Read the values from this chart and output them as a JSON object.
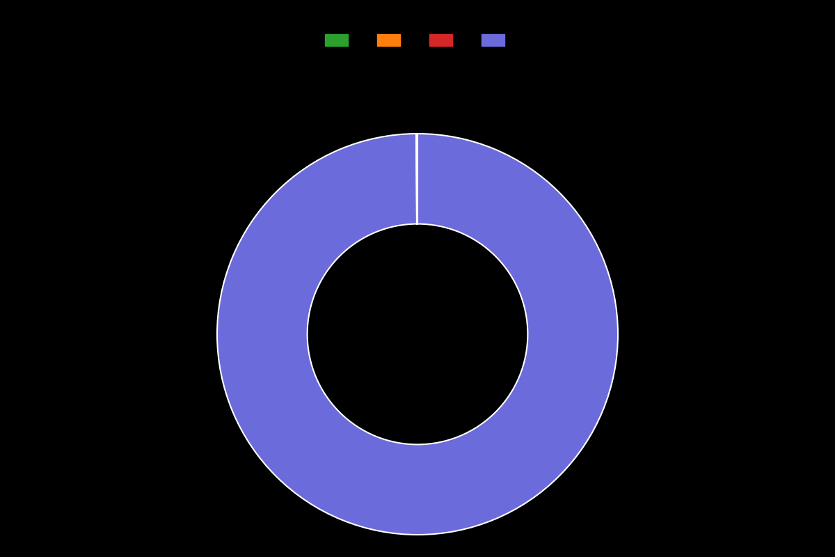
{
  "values": [
    99.9,
    0.033,
    0.033,
    0.034
  ],
  "colors": [
    "#6b6bdb",
    "#2ca02c",
    "#ff7f0e",
    "#d62728"
  ],
  "legend_colors": [
    "#2ca02c",
    "#ff7f0e",
    "#d62728",
    "#6b6bdb"
  ],
  "legend_labels": [
    "",
    "",
    "",
    ""
  ],
  "background_color": "#000000",
  "wedge_edge_color": "#ffffff",
  "donut_width": 0.45,
  "figsize": [
    12,
    8
  ],
  "dpi": 100,
  "startangle": 90
}
